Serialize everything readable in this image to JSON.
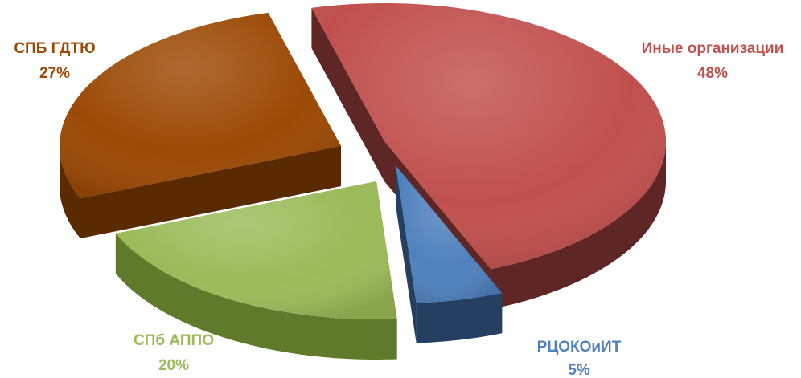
{
  "chart_data": {
    "type": "pie",
    "style": "3d-exploded",
    "slices": [
      {
        "name": "Иные организации",
        "value": 48,
        "label": "48%",
        "color": "#C0504D",
        "side_color": "#5E2725"
      },
      {
        "name": "РЦОКОиИТ",
        "value": 5,
        "label": "5%",
        "color": "#4F81BD",
        "side_color": "#243F60"
      },
      {
        "name": "СПб АППО",
        "value": 20,
        "label": "20%",
        "color": "#9BBB59",
        "side_color": "#5E7A2A"
      },
      {
        "name": "СПБ ГДТЮ",
        "value": 27,
        "label": "27%",
        "color": "#9C4A06",
        "side_color": "#5A2A02"
      }
    ],
    "legend": "none"
  }
}
